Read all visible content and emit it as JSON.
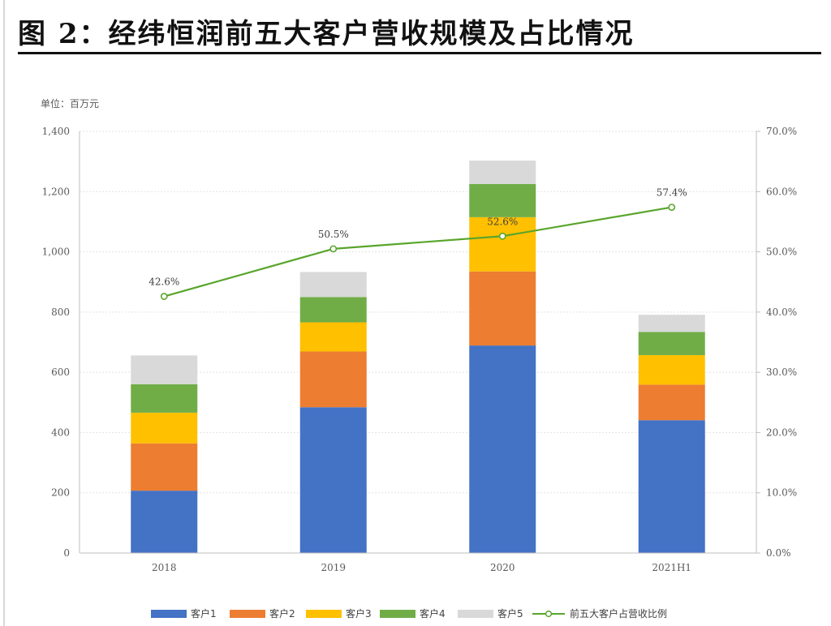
{
  "figure": {
    "title": "图 2：经纬恒润前五大客户营收规模及占比情况"
  },
  "chart_data": {
    "type": "bar",
    "stacked": true,
    "categories": [
      "2018",
      "2019",
      "2020",
      "2021H1"
    ],
    "unit_label": "单位：百万元",
    "y_left": {
      "range": [
        0,
        1400
      ],
      "ticks": [
        "0",
        "200",
        "400",
        "600",
        "800",
        "1,000",
        "1,200",
        "1,400"
      ]
    },
    "y_right": {
      "range": [
        0,
        70
      ],
      "ticks": [
        "0.0%",
        "10.0%",
        "20.0%",
        "30.0%",
        "40.0%",
        "50.0%",
        "60.0%",
        "70.0%"
      ]
    },
    "grid": true,
    "legend_position": "bottom",
    "series": [
      {
        "name": "客户1",
        "color": "#4472C4",
        "values": [
          207,
          484,
          689,
          441
        ]
      },
      {
        "name": "客户2",
        "color": "#ED7D31",
        "values": [
          157,
          185,
          246,
          118
        ]
      },
      {
        "name": "客户3",
        "color": "#FFC000",
        "values": [
          102,
          97,
          180,
          98
        ]
      },
      {
        "name": "客户4",
        "color": "#70AD47",
        "values": [
          94,
          84,
          110,
          77
        ]
      },
      {
        "name": "客户5",
        "color": "#D9D9D9",
        "values": [
          96,
          83,
          78,
          57
        ]
      }
    ],
    "line_series": {
      "name": "前五大客户占营收比例",
      "color": "#59A52C",
      "axis": "right",
      "values": [
        42.6,
        50.5,
        52.6,
        57.4
      ],
      "labels": [
        "42.6%",
        "50.5%",
        "52.6%",
        "57.4%"
      ]
    }
  }
}
